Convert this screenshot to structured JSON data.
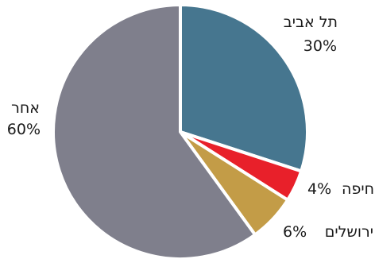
{
  "chart_data": {
    "type": "pie",
    "start_angle_deg": 0,
    "direction": "clockwise",
    "slices": [
      {
        "label": "תל אביב",
        "value": 30,
        "value_label": "30%",
        "color": "#46768f"
      },
      {
        "label": "חיפה",
        "value": 4,
        "value_label": "4%",
        "color": "#e8202a"
      },
      {
        "label": "ירושלים",
        "value": 6,
        "value_label": "6%",
        "color": "#c39c47"
      },
      {
        "label": "אחר",
        "value": 60,
        "value_label": "60%",
        "color": "#7f7f8c"
      }
    ]
  }
}
